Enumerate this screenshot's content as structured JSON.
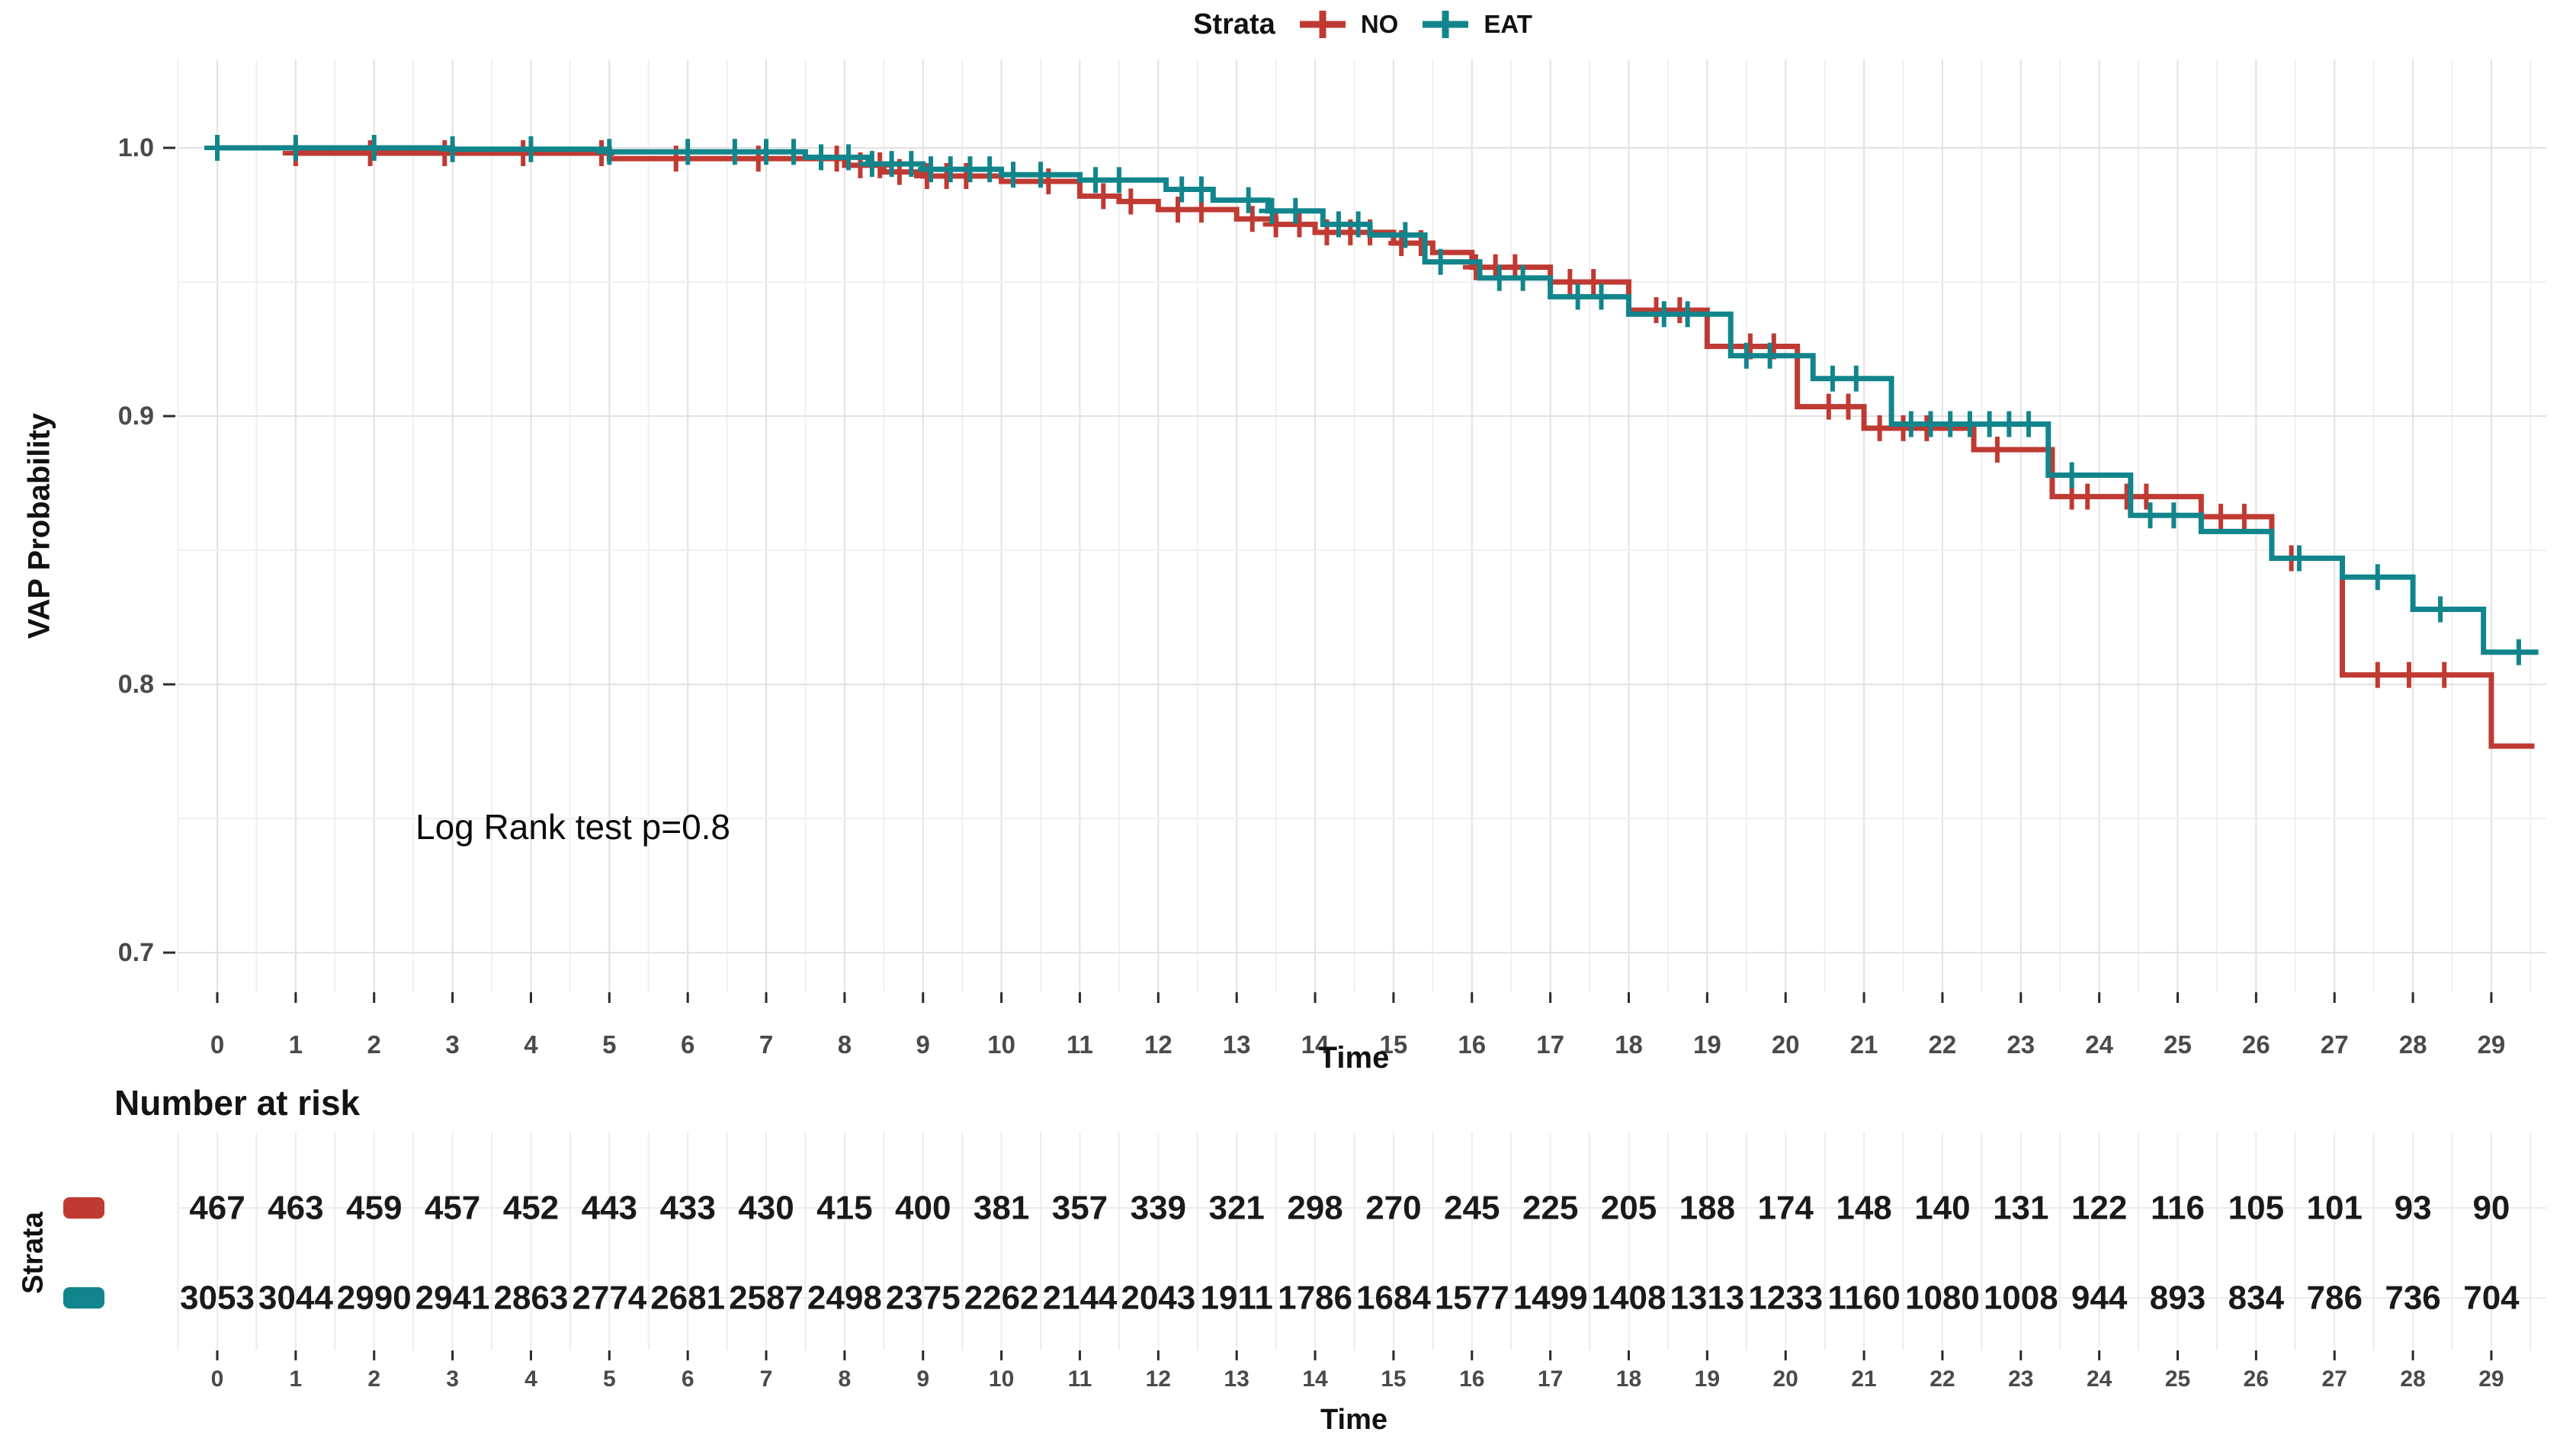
{
  "legend": {
    "title": "Strata",
    "items": [
      {
        "label": "NO",
        "color": "#bf3a32"
      },
      {
        "label": "EAT",
        "color": "#12858c"
      }
    ]
  },
  "chart_data": {
    "type": "line",
    "subtype": "kaplan-meier-step",
    "title": "",
    "xlabel": "Time",
    "ylabel": "VAP Probability",
    "xlim": [
      -0.5,
      29.8
    ],
    "ylim": [
      0.69,
      1.01
    ],
    "x_ticks": [
      0,
      1,
      2,
      3,
      4,
      5,
      6,
      7,
      8,
      9,
      10,
      11,
      12,
      13,
      14,
      15,
      16,
      17,
      18,
      19,
      20,
      21,
      22,
      23,
      24,
      25,
      26,
      27,
      28,
      29
    ],
    "y_ticks": [
      "1.0",
      "0.9",
      "0.8",
      "0.7"
    ],
    "y_tick_values": [
      1.0,
      0.9,
      0.8,
      0.7
    ],
    "grid": true,
    "legend_position": "top",
    "annotation": {
      "text": "Log Rank test p=0.8",
      "x": 4,
      "y": 0.745
    },
    "series": [
      {
        "name": "NO",
        "color": "#bf3a32",
        "end_time": 29.55,
        "step_points": [
          [
            0,
            1.0
          ],
          [
            1,
            0.998
          ],
          [
            5,
            0.996
          ],
          [
            8,
            0.9935
          ],
          [
            8.5,
            0.991
          ],
          [
            9,
            0.9895
          ],
          [
            10,
            0.9875
          ],
          [
            11,
            0.982
          ],
          [
            11.5,
            0.98
          ],
          [
            12,
            0.977
          ],
          [
            13,
            0.9735
          ],
          [
            13.5,
            0.9715
          ],
          [
            14,
            0.9685
          ],
          [
            15,
            0.9645
          ],
          [
            15.5,
            0.961
          ],
          [
            16,
            0.9555
          ],
          [
            17,
            0.95
          ],
          [
            18,
            0.9395
          ],
          [
            19,
            0.926
          ],
          [
            20.15,
            0.9035
          ],
          [
            21,
            0.8955
          ],
          [
            22.4,
            0.8875
          ],
          [
            23.4,
            0.87
          ],
          [
            25.3,
            0.8625
          ],
          [
            26.2,
            0.847
          ],
          [
            27.1,
            0.8035
          ],
          [
            29,
            0.777
          ]
        ],
        "censor_times": [
          1.0,
          1.95,
          2.9,
          3.9,
          4.9,
          5.85,
          6.9,
          7.9,
          8.2,
          8.45,
          8.7,
          9.05,
          9.3,
          9.55,
          10.6,
          11.3,
          11.65,
          12.25,
          12.55,
          13.2,
          13.5,
          13.8,
          14.15,
          14.45,
          14.7,
          15.1,
          15.35,
          16.05,
          16.3,
          16.55,
          17.25,
          17.55,
          18.35,
          18.65,
          19.55,
          19.85,
          20.55,
          20.8,
          21.2,
          21.5,
          21.8,
          22.7,
          23.65,
          23.85,
          24.35,
          24.6,
          25.55,
          25.85,
          26.45,
          27.55,
          27.95,
          28.4
        ]
      },
      {
        "name": "EAT",
        "color": "#12858c",
        "end_time": 29.6,
        "step_points": [
          [
            0,
            1.0
          ],
          [
            3,
            0.9995
          ],
          [
            5,
            0.9985
          ],
          [
            7.5,
            0.9965
          ],
          [
            8.3,
            0.994
          ],
          [
            9,
            0.992
          ],
          [
            10,
            0.99
          ],
          [
            11,
            0.988
          ],
          [
            12.1,
            0.9845
          ],
          [
            12.7,
            0.9805
          ],
          [
            13.4,
            0.9765
          ],
          [
            14.1,
            0.9715
          ],
          [
            14.7,
            0.9675
          ],
          [
            15.4,
            0.9575
          ],
          [
            16.1,
            0.9515
          ],
          [
            17,
            0.9445
          ],
          [
            18,
            0.938
          ],
          [
            19.3,
            0.9225
          ],
          [
            20.35,
            0.914
          ],
          [
            21.35,
            0.897
          ],
          [
            23.35,
            0.878
          ],
          [
            24.4,
            0.863
          ],
          [
            25.3,
            0.857
          ],
          [
            26.2,
            0.847
          ],
          [
            27.1,
            0.84
          ],
          [
            28,
            0.828
          ],
          [
            28.9,
            0.812
          ]
        ],
        "censor_times": [
          0.0,
          1.0,
          2.0,
          3.0,
          4.0,
          5.0,
          6.0,
          6.6,
          7.0,
          7.35,
          7.7,
          8.05,
          8.35,
          8.6,
          8.85,
          9.1,
          9.35,
          9.6,
          9.85,
          10.15,
          10.5,
          11.2,
          11.5,
          12.3,
          12.55,
          13.15,
          13.45,
          13.75,
          14.3,
          14.55,
          15.15,
          15.6,
          16.35,
          16.65,
          17.35,
          17.65,
          18.45,
          18.75,
          19.5,
          19.8,
          20.6,
          20.9,
          21.6,
          21.85,
          22.1,
          22.35,
          22.6,
          22.85,
          23.1,
          23.65,
          24.65,
          24.95,
          26.55,
          27.55,
          28.35,
          29.35
        ]
      }
    ],
    "risk_table": {
      "title": "Number at risk",
      "ylabel": "Strata",
      "xlabel": "Time",
      "times": [
        0,
        1,
        2,
        3,
        4,
        5,
        6,
        7,
        8,
        9,
        10,
        11,
        12,
        13,
        14,
        15,
        16,
        17,
        18,
        19,
        20,
        21,
        22,
        23,
        24,
        25,
        26,
        27,
        28,
        29
      ],
      "rows": [
        {
          "name": "NO",
          "color": "#bf3a32",
          "values": [
            467,
            463,
            459,
            457,
            452,
            443,
            433,
            430,
            415,
            400,
            381,
            357,
            339,
            321,
            298,
            270,
            245,
            225,
            205,
            188,
            174,
            148,
            140,
            131,
            122,
            116,
            105,
            101,
            93,
            90
          ]
        },
        {
          "name": "EAT",
          "color": "#12858c",
          "values": [
            3053,
            3044,
            2990,
            2941,
            2863,
            2774,
            2681,
            2587,
            2498,
            2375,
            2262,
            2144,
            2043,
            1911,
            1786,
            1684,
            1577,
            1499,
            1408,
            1313,
            1233,
            1160,
            1080,
            1008,
            944,
            893,
            834,
            786,
            736,
            704
          ]
        }
      ]
    }
  }
}
